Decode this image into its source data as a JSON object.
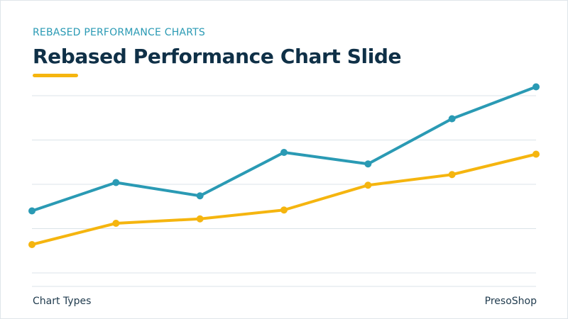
{
  "slide": {
    "kicker": "REBASED PERFORMANCE CHARTS",
    "title": "Rebased Performance Chart Slide",
    "footer_left": "Chart Types",
    "footer_right": "PresoShop"
  },
  "colors": {
    "accent_teal": "#2a9ab4",
    "accent_yellow": "#f5b50f",
    "title": "#0f3047",
    "grid": "#dbe3e8"
  },
  "chart_data": {
    "type": "line",
    "title": "",
    "xlabel": "",
    "ylabel": "",
    "x": [
      1,
      2,
      3,
      4,
      5,
      6,
      7
    ],
    "ylim": [
      0,
      100
    ],
    "grid": true,
    "legend": "none",
    "series": [
      {
        "color": "#2a9ab4",
        "values": [
          35,
          51,
          43.5,
          68,
          61.5,
          87,
          105
        ]
      },
      {
        "color": "#f5b50f",
        "values": [
          16,
          28,
          30.5,
          35.5,
          49.5,
          55.5,
          67
        ]
      }
    ]
  }
}
